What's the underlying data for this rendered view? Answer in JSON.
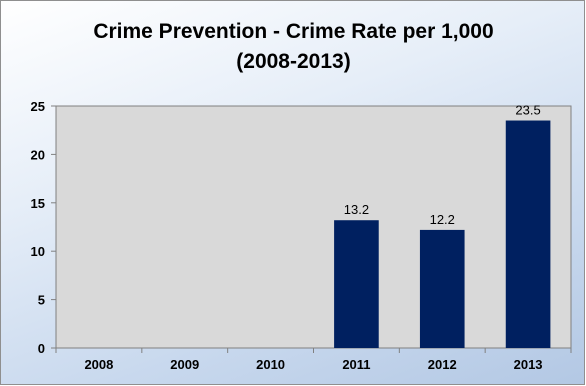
{
  "chart_data": {
    "type": "bar",
    "title_line1": "Crime Prevention - Crime Rate per 1,000",
    "title_line2": "(2008-2013)",
    "categories": [
      "2008",
      "2009",
      "2010",
      "2011",
      "2012",
      "2013"
    ],
    "values": [
      0,
      0,
      0,
      13.2,
      12.2,
      23.5
    ],
    "data_labels": [
      "",
      "",
      "",
      "13.2",
      "12.2",
      "23.5"
    ],
    "y_ticks": [
      "0",
      "5",
      "10",
      "15",
      "20",
      "25"
    ],
    "ylim": [
      0,
      25
    ],
    "xlabel": "",
    "ylabel": "",
    "grid": false,
    "legend": "none",
    "colors": {
      "bar": "#002060",
      "plot_background": "#d9d9d9",
      "chart_background": "#c6d9f1"
    }
  }
}
